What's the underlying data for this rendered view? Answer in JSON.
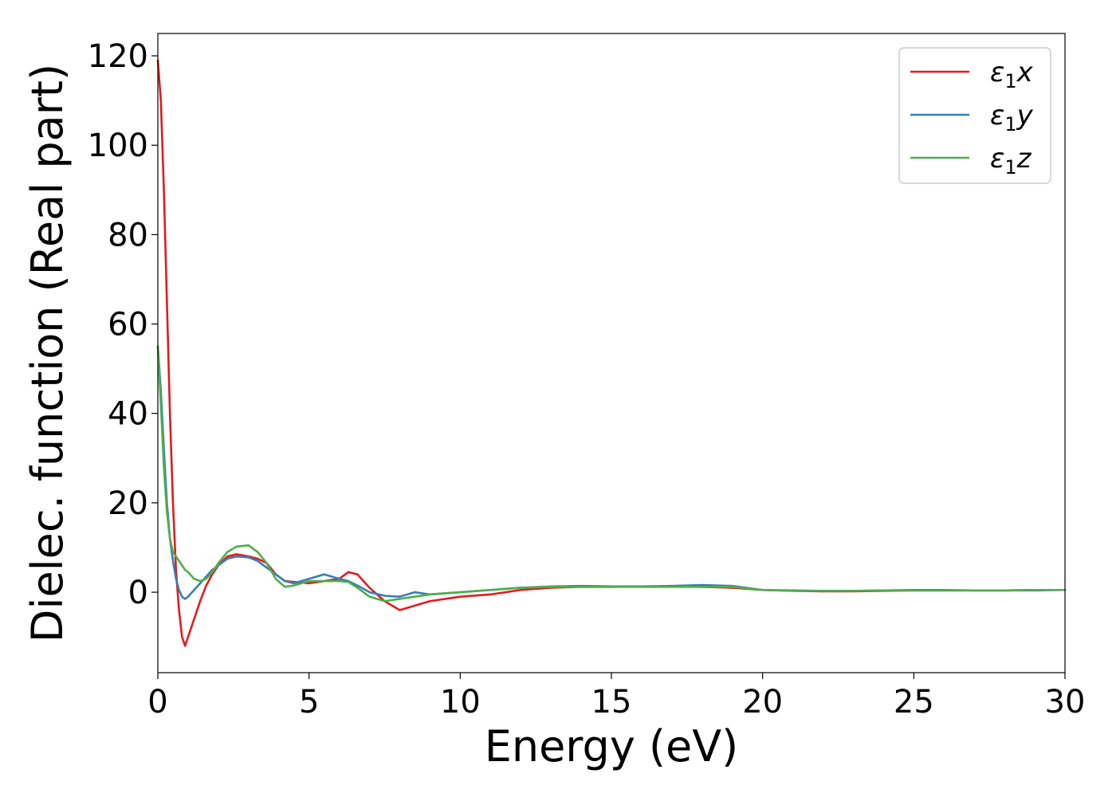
{
  "chart_data": {
    "type": "line",
    "title": "",
    "xlabel": "Energy (eV)",
    "ylabel": "Dielec. function (Real part)",
    "xlim": [
      0,
      30
    ],
    "ylim": [
      -18,
      125
    ],
    "xticks": [
      0,
      5,
      10,
      15,
      20,
      25,
      30
    ],
    "yticks": [
      0,
      20,
      40,
      60,
      80,
      100,
      120
    ],
    "grid": false,
    "legend_position": "top-right",
    "series": [
      {
        "name": "ε₁x",
        "legend_main": "ε",
        "legend_sub": "1",
        "legend_suffix": "x",
        "color": "#e41a1c",
        "x": [
          0,
          0.1,
          0.2,
          0.3,
          0.4,
          0.5,
          0.6,
          0.7,
          0.8,
          0.9,
          1.0,
          1.2,
          1.4,
          1.6,
          1.8,
          2.0,
          2.3,
          2.6,
          3.0,
          3.3,
          3.6,
          3.9,
          4.2,
          4.5,
          5.0,
          5.5,
          6.0,
          6.3,
          6.6,
          7.0,
          7.5,
          8.0,
          8.5,
          9.0,
          10.0,
          11.0,
          12.0,
          13.0,
          14.0,
          15.0,
          16.0,
          17.0,
          18.0,
          19.0,
          20.0,
          21.0,
          22.0,
          23.0,
          24.0,
          25.0,
          26.0,
          27.0,
          28.0,
          29.0,
          30.0
        ],
        "y": [
          119,
          110,
          90,
          65,
          40,
          20,
          5,
          -4,
          -10,
          -12,
          -10,
          -6,
          -2,
          1.5,
          4,
          6,
          8,
          8.5,
          8,
          7.5,
          6.5,
          4,
          2.5,
          2.3,
          2,
          2.5,
          3,
          4.5,
          4,
          1,
          -2,
          -4,
          -3,
          -2,
          -1,
          -0.5,
          0.5,
          1,
          1.2,
          1.2,
          1.3,
          1.3,
          1.2,
          1,
          0.5,
          0.3,
          0.2,
          0.2,
          0.3,
          0.4,
          0.4,
          0.4,
          0.4,
          0.5,
          0.5
        ]
      },
      {
        "name": "ε₁y",
        "legend_main": "ε",
        "legend_sub": "1",
        "legend_suffix": "y",
        "color": "#377eb8",
        "x": [
          0,
          0.1,
          0.2,
          0.3,
          0.4,
          0.5,
          0.6,
          0.7,
          0.8,
          0.9,
          1.0,
          1.2,
          1.4,
          1.6,
          1.8,
          2.0,
          2.3,
          2.6,
          3.0,
          3.3,
          3.6,
          3.9,
          4.2,
          4.5,
          5.0,
          5.5,
          6.0,
          6.3,
          6.6,
          7.0,
          7.5,
          8.0,
          8.5,
          9.0,
          10.0,
          11.0,
          12.0,
          13.0,
          14.0,
          15.0,
          16.0,
          17.0,
          18.0,
          19.0,
          20.0,
          21.0,
          22.0,
          23.0,
          24.0,
          25.0,
          26.0,
          27.0,
          28.0,
          29.0,
          30.0
        ],
        "y": [
          55,
          45,
          32,
          20,
          12,
          7,
          3,
          0.5,
          -1,
          -1.5,
          -1,
          0.5,
          2,
          3.5,
          5,
          6,
          7.5,
          8,
          7.8,
          7,
          5.5,
          4,
          2.5,
          2,
          3,
          4,
          3,
          2.5,
          1.5,
          0,
          -0.8,
          -1,
          0,
          -0.5,
          0,
          0.5,
          1,
          1.3,
          1.4,
          1.3,
          1.3,
          1.4,
          1.6,
          1.4,
          0.5,
          0.4,
          0.3,
          0.3,
          0.4,
          0.5,
          0.5,
          0.4,
          0.4,
          0.4,
          0.5
        ]
      },
      {
        "name": "ε₁z",
        "legend_main": "ε",
        "legend_sub": "1",
        "legend_suffix": "z",
        "color": "#4daf4a",
        "x": [
          0,
          0.1,
          0.2,
          0.3,
          0.4,
          0.5,
          0.6,
          0.7,
          0.8,
          0.9,
          1.0,
          1.2,
          1.4,
          1.6,
          1.8,
          2.0,
          2.3,
          2.6,
          3.0,
          3.3,
          3.6,
          3.9,
          4.2,
          4.5,
          5.0,
          5.5,
          6.0,
          6.3,
          6.6,
          7.0,
          7.5,
          8.0,
          8.5,
          9.0,
          10.0,
          11.0,
          12.0,
          13.0,
          14.0,
          15.0,
          16.0,
          17.0,
          18.0,
          19.0,
          20.0,
          21.0,
          22.0,
          23.0,
          24.0,
          25.0,
          26.0,
          27.0,
          28.0,
          29.0,
          30.0
        ],
        "y": [
          55,
          42,
          28,
          18,
          12,
          9,
          8,
          7,
          6,
          5,
          4.5,
          3,
          2.5,
          3,
          4.5,
          6.5,
          9,
          10.2,
          10.5,
          9,
          6.5,
          3,
          1.2,
          1.5,
          2.5,
          2.5,
          2.5,
          2.3,
          1,
          -1,
          -2,
          -1.5,
          -1,
          -0.5,
          0,
          0.5,
          1,
          1.2,
          1.2,
          1.2,
          1.2,
          1.2,
          1.2,
          1.2,
          0.5,
          0.3,
          0.3,
          0.3,
          0.4,
          0.4,
          0.4,
          0.4,
          0.4,
          0.5,
          0.5
        ]
      }
    ]
  }
}
